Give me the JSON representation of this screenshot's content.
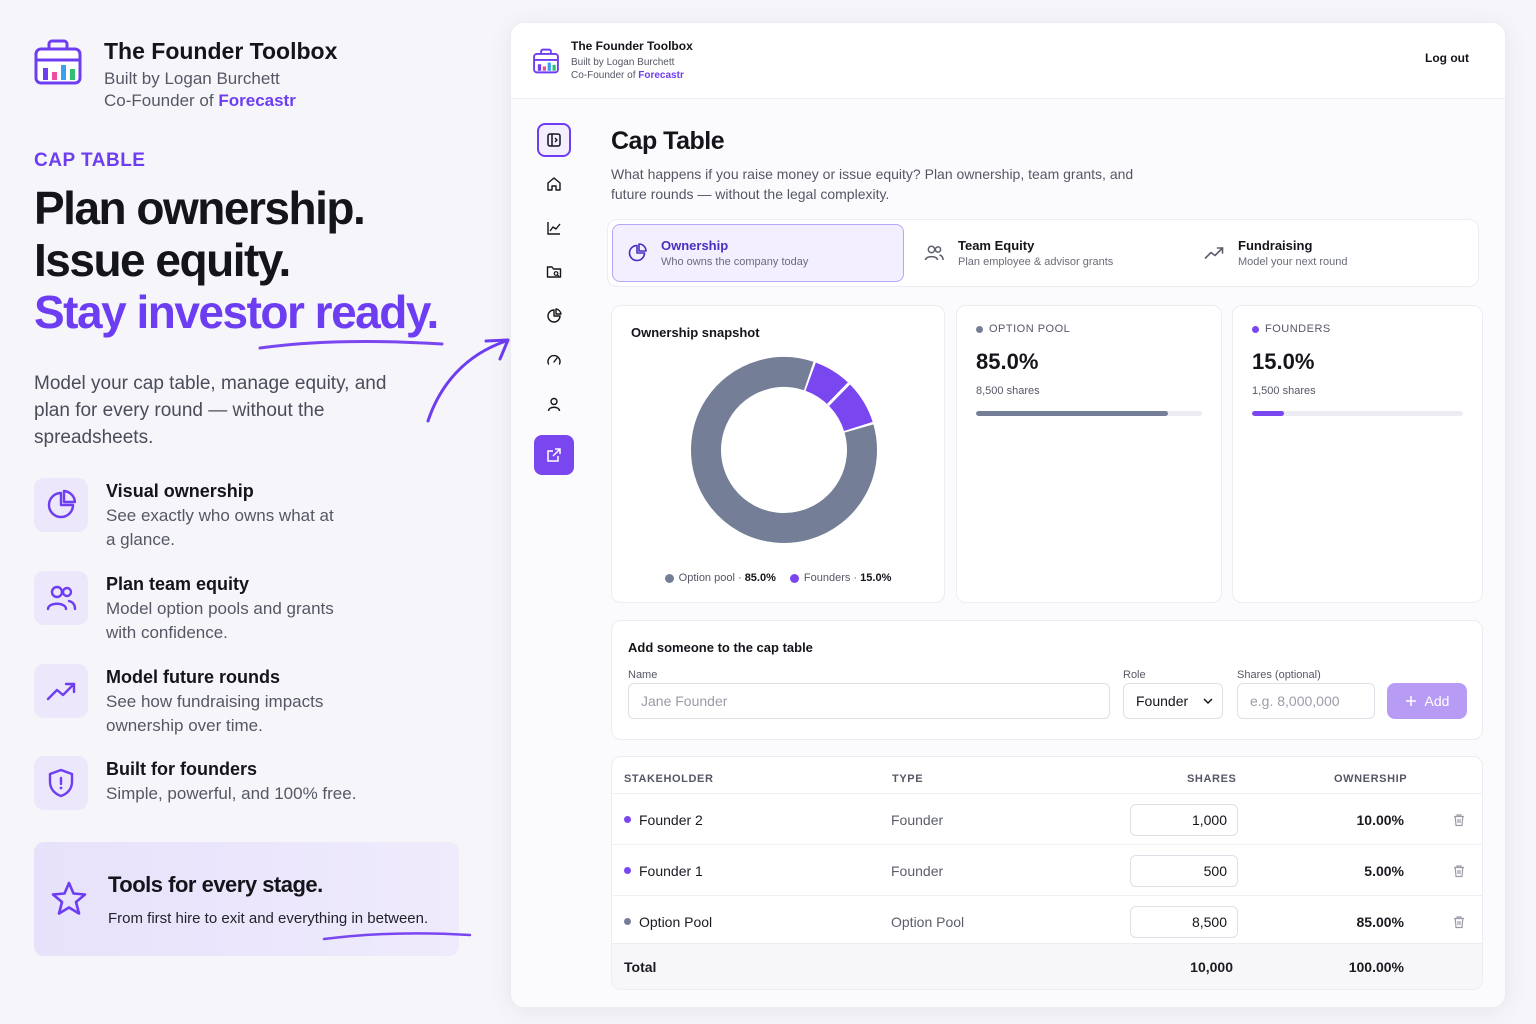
{
  "brand": {
    "title": "The Founder Toolbox",
    "built_by": "Built by Logan Burchett",
    "cofounder_prefix": "Co-Founder of",
    "company": "Forecastr"
  },
  "hero": {
    "eyebrow": "CAP TABLE",
    "line1": "Plan ownership.",
    "line2": "Issue equity.",
    "line3": "Stay investor ready.",
    "lead": "Model your cap table, manage equity, and plan for every round — without the spreadsheets."
  },
  "features": [
    {
      "icon": "pie-chart-icon",
      "title": "Visual ownership",
      "desc": "See exactly who owns what at a glance."
    },
    {
      "icon": "users-icon",
      "title": "Plan team equity",
      "desc": "Model option pools and grants with confidence."
    },
    {
      "icon": "trend-up-icon",
      "title": "Model future rounds",
      "desc": "See how fundraising impacts ownership over time."
    },
    {
      "icon": "shield-icon",
      "title": "Built for founders",
      "desc": "Simple, powerful, and 100% free."
    }
  ],
  "promo": {
    "title": "Tools for every stage.",
    "desc": "From first hire to exit and everything in between."
  },
  "app": {
    "header": {
      "title": "The Founder Toolbox",
      "built_by": "Built by Logan Burchett",
      "cofounder_prefix": "Co-Founder of",
      "company": "Forecastr",
      "logout": "Log out"
    },
    "nav_icons": [
      "sidebar-toggle-icon",
      "home-icon",
      "line-chart-icon",
      "folder-search-icon",
      "pie-chart-icon",
      "gauge-icon",
      "user-icon",
      "external-link-icon"
    ],
    "page": {
      "title": "Cap Table",
      "desc": "What happens if you raise money or issue equity? Plan ownership, team grants, and future rounds — without the legal complexity."
    },
    "tabs": [
      {
        "label": "Ownership",
        "sub": "Who owns the company today",
        "icon": "pie-chart-icon",
        "active": true
      },
      {
        "label": "Team Equity",
        "sub": "Plan employee & advisor grants",
        "icon": "users-icon",
        "active": false
      },
      {
        "label": "Fundraising",
        "sub": "Model your next round",
        "icon": "trend-up-icon",
        "active": false
      }
    ],
    "snapshot": {
      "title": "Ownership snapshot",
      "legend": [
        {
          "name": "Option pool",
          "value": "85.0%",
          "color": "#747e97"
        },
        {
          "name": "Founders",
          "value": "15.0%",
          "color": "#7a46f0"
        }
      ]
    },
    "stats": [
      {
        "label": "OPTION POOL",
        "value": "85.0%",
        "shares": "8,500 shares",
        "fill": 0.85,
        "color": "#747e97"
      },
      {
        "label": "FOUNDERS",
        "value": "15.0%",
        "shares": "1,500 shares",
        "fill": 0.15,
        "color": "#7a46f0"
      }
    ],
    "add_form": {
      "title": "Add someone to the cap table",
      "name_label": "Name",
      "name_placeholder": "Jane Founder",
      "role_label": "Role",
      "role_value": "Founder",
      "shares_label": "Shares (optional)",
      "shares_placeholder": "e.g. 8,000,000",
      "add_label": "Add"
    },
    "table": {
      "headers": {
        "stakeholder": "STAKEHOLDER",
        "type": "TYPE",
        "shares": "SHARES",
        "ownership": "OWNERSHIP"
      },
      "rows": [
        {
          "name": "Founder 2",
          "type": "Founder",
          "shares": "1,000",
          "ownership": "10.00%",
          "color": "#7a46f0"
        },
        {
          "name": "Founder 1",
          "type": "Founder",
          "shares": "500",
          "ownership": "5.00%",
          "color": "#7a46f0"
        },
        {
          "name": "Option Pool",
          "type": "Option Pool",
          "shares": "8,500",
          "ownership": "85.00%",
          "color": "#747e97"
        }
      ],
      "total": {
        "label": "Total",
        "shares": "10,000",
        "ownership": "100.00%"
      }
    }
  },
  "chart_data": {
    "type": "pie",
    "categories": [
      "Option pool",
      "Founders"
    ],
    "values": [
      85.0,
      15.0
    ],
    "title": "Ownership snapshot",
    "colors": [
      "#747e97",
      "#7a46f0"
    ]
  }
}
